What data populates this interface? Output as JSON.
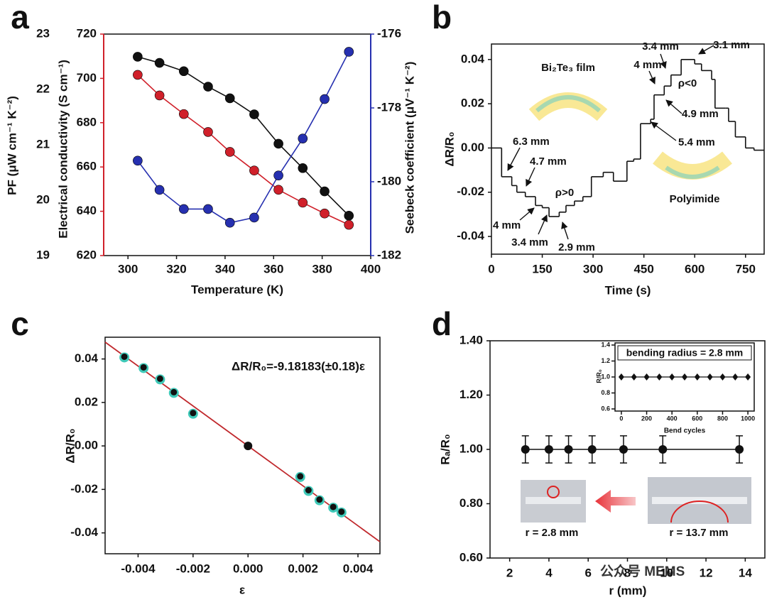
{
  "chart_data": [
    {
      "type": "line",
      "panel_label": "a",
      "xlabel": "Temperature (K)",
      "ylabel": "PF (μW cm⁻¹ K⁻²)",
      "y2label": "Electrical conductivity (S cm⁻¹)",
      "y3label": "Seebeck coefficient (μV⁻¹ K⁻²)",
      "x": [
        304,
        313,
        323,
        333,
        342,
        352,
        362,
        372,
        381,
        391
      ],
      "series": [
        {
          "color": "#111111",
          "axis": "y",
          "values": [
            22.59,
            22.48,
            22.33,
            22.05,
            21.84,
            21.55,
            21.02,
            20.58,
            20.16,
            19.72
          ]
        },
        {
          "color": "#d0202a",
          "axis": "y2",
          "values": [
            701.6,
            692.3,
            683.9,
            675.8,
            666.8,
            658.4,
            649.7,
            643.9,
            639.0,
            633.9
          ]
        },
        {
          "color": "#2630b0",
          "axis": "y3",
          "values": [
            -179.43,
            -180.22,
            -180.74,
            -180.74,
            -181.11,
            -180.97,
            -179.83,
            -178.83,
            -177.76,
            -176.48
          ]
        }
      ],
      "xlim": [
        290,
        400
      ],
      "xticks": [
        300,
        320,
        340,
        360,
        380,
        400
      ],
      "ylim": [
        19,
        23
      ],
      "yticks": [
        19,
        20,
        21,
        22,
        23
      ],
      "y2lim": [
        620,
        720
      ],
      "y2ticks": [
        620,
        640,
        660,
        680,
        700,
        720
      ],
      "y2color": "#d0202a",
      "y3lim": [
        -182,
        -176
      ],
      "y3ticks": [
        -182,
        -180,
        -178,
        -176
      ],
      "y3color": "#2630b0"
    },
    {
      "type": "step",
      "panel_label": "b",
      "xlabel": "Time (s)",
      "ylabel": "ΔR/R₀",
      "color": "#111111",
      "x": [
        0,
        30,
        60,
        75,
        100,
        130,
        150,
        170,
        200,
        220,
        245,
        270,
        295,
        330,
        360,
        400,
        420,
        440,
        470,
        480,
        510,
        530,
        560,
        600,
        620,
        650,
        660,
        690,
        700,
        720,
        750,
        775
      ],
      "values": [
        0.0,
        -0.013,
        -0.017,
        -0.02,
        -0.022,
        -0.026,
        -0.027,
        -0.031,
        -0.029,
        -0.026,
        -0.024,
        -0.022,
        -0.013,
        -0.011,
        -0.015,
        -0.006,
        -0.005,
        0.011,
        0.013,
        0.024,
        0.028,
        0.033,
        0.04,
        0.038,
        0.035,
        0.031,
        0.018,
        0.018,
        0.012,
        0.005,
        0.0,
        -0.001
      ],
      "xlim": [
        0,
        805
      ],
      "xticks": [
        0,
        150,
        300,
        450,
        600,
        750
      ],
      "ylim": [
        -0.048,
        0.047
      ],
      "yticks": [
        -0.04,
        -0.02,
        {
          "value": 0,
          "label": "0.00"
        },
        0.02,
        0.04
      ],
      "annotations": [
        "Bi₂Te₃ film",
        "6.3 mm",
        "4.7 mm",
        "ρ>0",
        "4 mm",
        "3.4 mm",
        "2.9 mm",
        "3.4 mm",
        "3.1 mm",
        "4 mm",
        "ρ<0",
        "4.9 mm",
        "5.4 mm",
        "Polyimide"
      ]
    },
    {
      "type": "scatter",
      "panel_label": "c",
      "xlabel": "ε",
      "ylabel": "ΔR/R₀",
      "annotation": "ΔR/R₀=-9.18183(±0.18)ε",
      "x": [
        -0.0045,
        -0.0038,
        -0.0032,
        -0.0027,
        -0.002,
        0,
        0.0019,
        0.0022,
        0.0026,
        0.0031,
        0.0034
      ],
      "values": [
        0.0407,
        0.0358,
        0.0306,
        0.0244,
        0.0148,
        0,
        -0.0143,
        -0.0207,
        -0.025,
        -0.0284,
        -0.0306
      ],
      "color": "#3fc9b8",
      "fit_slope": -9.18183,
      "fit_color": "#c0282c",
      "xlim": [
        -0.0052,
        0.0048
      ],
      "xticks": [
        -0.004,
        -0.002,
        {
          "value": 0,
          "label": "0.000"
        },
        0.002,
        0.004
      ],
      "ylim": [
        -0.0496,
        0.05
      ],
      "yticks": [
        -0.04,
        -0.02,
        {
          "value": 0,
          "label": "0.00"
        },
        0.02,
        0.04
      ]
    },
    {
      "type": "errorbar",
      "panel_label": "d",
      "xlabel": "r (mm)",
      "ylabel": "Rₐ/R₀",
      "x": [
        2.8,
        4.0,
        5.0,
        6.2,
        7.8,
        9.8,
        13.7
      ],
      "values": [
        1.0,
        1.0,
        1.0,
        1.0,
        1.0,
        1.0,
        1.0
      ],
      "errors": [
        0.05,
        0.05,
        0.05,
        0.05,
        0.05,
        0.05,
        0.05
      ],
      "xlim": [
        1,
        15
      ],
      "xticks": [
        2,
        4,
        6,
        8,
        10,
        12,
        14
      ],
      "ylim": [
        0.6,
        1.4
      ],
      "yticks": [
        {
          "value": 0.6,
          "label": "0.60"
        },
        {
          "value": 0.8,
          "label": "0.80"
        },
        {
          "value": 1.0,
          "label": "1.00"
        },
        {
          "value": 1.2,
          "label": "1.20"
        },
        {
          "value": 1.4,
          "label": "1.40"
        }
      ],
      "photo_labels": [
        "r = 2.8 mm",
        "r = 13.7 mm"
      ],
      "watermark": "公众号 MEMS",
      "inset": {
        "title": "bending radius = 2.8 mm",
        "xlabel": "Bend cycles",
        "ylabel": "R/R₀",
        "x": [
          0,
          100,
          200,
          300,
          400,
          500,
          600,
          700,
          800,
          900,
          1000
        ],
        "values": [
          1.0,
          1.0,
          1.0,
          1.0,
          1.0,
          1.0,
          1.0,
          1.0,
          1.0,
          1.0,
          1.0
        ],
        "errors": [
          0.03,
          0.03,
          0.03,
          0.03,
          0.03,
          0.03,
          0.03,
          0.03,
          0.03,
          0.03,
          0.03
        ],
        "xlim": [
          -50,
          1050
        ],
        "xticks": [
          0,
          200,
          400,
          600,
          800,
          1000
        ],
        "ylim": [
          0.6,
          1.4
        ],
        "yticks": [
          0.6,
          0.8,
          {
            "value": 1.0,
            "label": "1.0"
          },
          1.2,
          1.4
        ]
      }
    }
  ]
}
